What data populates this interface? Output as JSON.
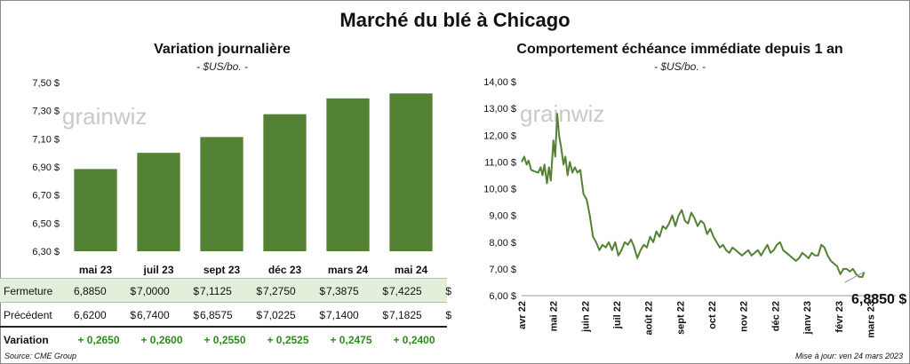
{
  "title": "Marché du blé à Chicago",
  "left": {
    "subtitle": "Variation journalière",
    "unit": "- $US/bo. -"
  },
  "right": {
    "subtitle": "Comportement échéance immédiate depuis 1 an",
    "unit": "- $US/bo. -",
    "last_value_label": "6,8850 $"
  },
  "watermark": "grainwiz",
  "table": {
    "rows": [
      {
        "label": "Fermeture",
        "values": [
          "6,8850",
          "7,0000",
          "7,1125",
          "7,2750",
          "7,3875",
          "7,4225"
        ],
        "currency": "$"
      },
      {
        "label": "Précédent",
        "values": [
          "6,6200",
          "6,7400",
          "6,8575",
          "7,0225",
          "7,1400",
          "7,1825"
        ],
        "currency": "$"
      },
      {
        "label": "Variation",
        "values": [
          "+ 0,2650",
          "+ 0,2600",
          "+ 0,2550",
          "+ 0,2525",
          "+ 0,2475",
          "+ 0,2400"
        ]
      }
    ]
  },
  "footer": {
    "source": "Source: CME Group",
    "updated": "Mise à jour: ven 24 mars 2023"
  },
  "colors": {
    "bar": "#548235",
    "line": "#548235",
    "header_band": "#e2efda",
    "variation": "#2e8b1e"
  },
  "chart_data": [
    {
      "type": "bar",
      "title": "Variation journalière",
      "subtitle": "- $US/bo. -",
      "categories": [
        "mai 23",
        "juil 23",
        "sept 23",
        "déc 23",
        "mars 24",
        "mai 24"
      ],
      "values": [
        6.885,
        7.0,
        7.1125,
        7.275,
        7.3875,
        7.4225
      ],
      "ylim": [
        6.3,
        7.5
      ],
      "yticks": [
        6.3,
        6.5,
        6.7,
        6.9,
        7.1,
        7.3,
        7.5
      ],
      "ytick_labels": [
        "6,30 $",
        "6,50 $",
        "6,70 $",
        "6,90 $",
        "7,10 $",
        "7,30 $",
        "7,50 $"
      ],
      "grid": false
    },
    {
      "type": "line",
      "title": "Comportement échéance immédiate depuis 1 an",
      "subtitle": "- $US/bo. -",
      "ylim": [
        6.0,
        14.0
      ],
      "yticks": [
        6,
        7,
        8,
        9,
        10,
        11,
        12,
        13,
        14
      ],
      "ytick_labels": [
        "6,00 $",
        "7,00 $",
        "8,00 $",
        "9,00 $",
        "10,00 $",
        "11,00 $",
        "12,00 $",
        "13,00 $",
        "14,00 $"
      ],
      "xtick_labels": [
        "avr 22",
        "mai 22",
        "juin 22",
        "juil 22",
        "août 22",
        "sept 22",
        "oct 22",
        "nov 22",
        "déc 22",
        "janv 23",
        "févr 23",
        "mars 23"
      ],
      "last_value": 6.885,
      "series": [
        {
          "x": [
            0.0,
            0.08,
            0.16,
            0.22,
            0.3,
            0.4,
            0.52,
            0.6,
            0.66,
            0.72,
            0.8,
            0.86,
            0.92,
            1.0,
            1.06,
            1.12,
            1.18,
            1.25,
            1.32,
            1.38,
            1.45,
            1.52,
            1.6,
            1.68,
            1.76,
            1.85,
            1.95,
            2.05,
            2.15,
            2.25,
            2.35,
            2.45,
            2.55,
            2.65,
            2.75,
            2.85,
            2.95,
            3.05,
            3.15,
            3.25,
            3.35,
            3.45,
            3.55,
            3.65,
            3.75,
            3.85,
            3.95,
            4.05,
            4.15,
            4.25,
            4.35,
            4.45,
            4.55,
            4.65,
            4.75,
            4.85,
            4.95,
            5.05,
            5.15,
            5.25,
            5.35,
            5.45,
            5.55,
            5.65,
            5.75,
            5.85,
            5.95,
            6.05,
            6.15,
            6.25,
            6.35,
            6.45,
            6.55,
            6.65,
            6.75,
            6.85,
            6.95,
            7.05,
            7.15,
            7.25,
            7.35,
            7.45,
            7.55,
            7.65,
            7.75,
            7.85,
            7.95,
            8.05,
            8.15,
            8.25,
            8.35,
            8.45,
            8.55,
            8.65,
            8.75,
            8.85,
            8.95,
            9.05,
            9.15,
            9.25,
            9.35,
            9.45,
            9.55,
            9.65,
            9.75,
            9.85,
            9.95,
            10.05,
            10.15,
            10.25,
            10.35,
            10.45,
            10.55,
            10.65,
            10.75,
            10.8
          ],
          "y": [
            11.0,
            11.2,
            10.9,
            11.05,
            10.7,
            10.65,
            10.6,
            10.8,
            10.5,
            10.9,
            10.2,
            10.8,
            10.3,
            11.8,
            11.2,
            12.8,
            12.0,
            11.5,
            10.9,
            11.2,
            10.5,
            11.0,
            10.6,
            10.8,
            10.6,
            10.7,
            9.8,
            9.6,
            9.0,
            8.2,
            8.0,
            7.7,
            7.9,
            7.8,
            8.0,
            7.7,
            8.0,
            7.5,
            7.7,
            8.0,
            7.9,
            8.1,
            7.8,
            7.4,
            7.7,
            7.9,
            7.8,
            8.2,
            8.0,
            8.4,
            8.2,
            8.6,
            8.5,
            8.7,
            9.0,
            8.6,
            9.0,
            9.2,
            8.8,
            8.7,
            9.1,
            8.9,
            8.6,
            8.8,
            8.7,
            8.3,
            8.5,
            8.2,
            8.0,
            7.8,
            7.9,
            7.7,
            7.6,
            7.8,
            7.7,
            7.6,
            7.5,
            7.6,
            7.7,
            7.5,
            7.6,
            7.7,
            7.5,
            7.7,
            7.9,
            7.6,
            7.7,
            7.9,
            8.0,
            7.7,
            7.6,
            7.5,
            7.4,
            7.3,
            7.4,
            7.6,
            7.5,
            7.4,
            7.6,
            7.5,
            7.5,
            7.9,
            7.8,
            7.5,
            7.3,
            7.2,
            7.1,
            6.8,
            7.0,
            7.0,
            6.9,
            7.0,
            6.8,
            6.7,
            6.7,
            6.885
          ]
        }
      ]
    }
  ]
}
